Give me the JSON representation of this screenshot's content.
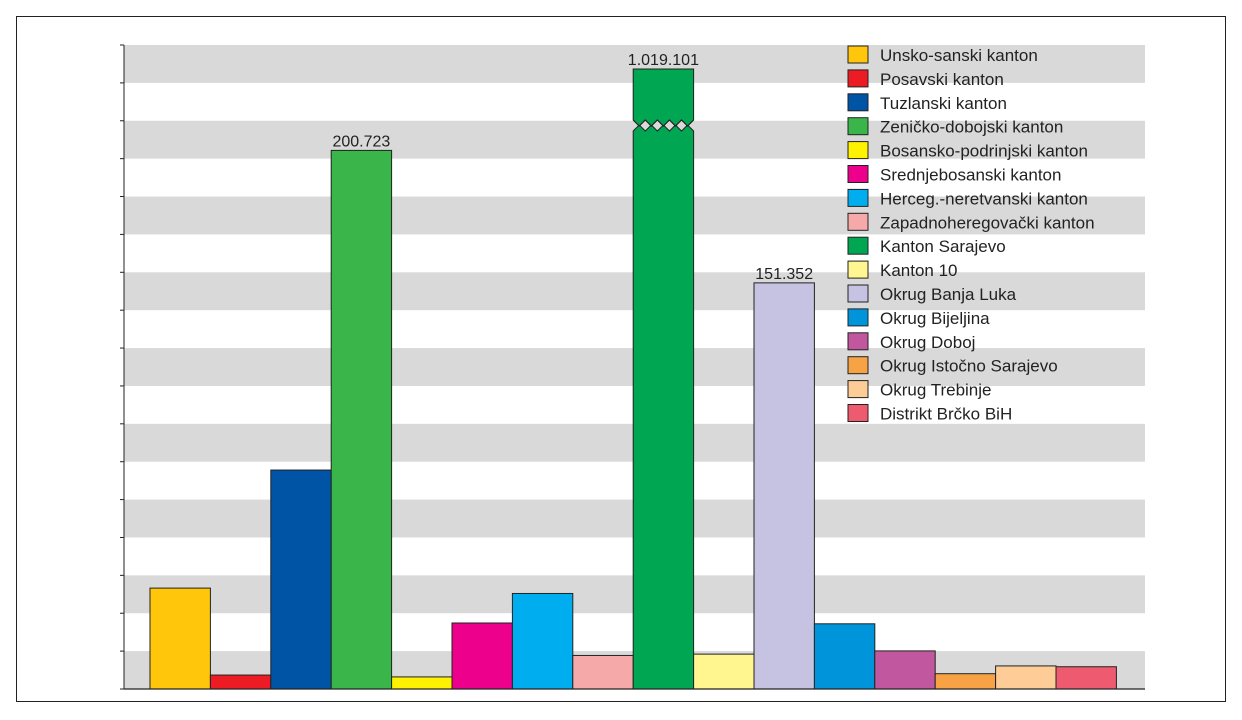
{
  "chart_data": {
    "type": "bar",
    "title": "",
    "xlabel": "",
    "ylabel": "",
    "ylim": [
      0,
      240000
    ],
    "axis_break": true,
    "grid": "alternating horizontal bands",
    "legend_placement": "top-right",
    "categories": [
      "Unsko-sanski kanton",
      "Posavski kanton",
      "Tuzlanski kanton",
      "Zeničko-dobojski kanton",
      "Bosansko-podrinjski kanton",
      "Srednjebosanski kanton",
      "Herceg.-neretvanski kanton",
      "Zapadnoheregovački kanton",
      "Kanton Sarajevo",
      "Kanton 10",
      "Okrug Banja Luka",
      "Okrug Bijeljina",
      "Okrug Doboj",
      "Okrug Istočno Sarajevo",
      "Okrug Trebinje",
      "Distrikt Brčko BiH"
    ],
    "values": [
      37600,
      5200,
      81600,
      200723,
      4500,
      24600,
      35600,
      12500,
      1019101,
      13000,
      151352,
      24300,
      14200,
      5700,
      8600,
      8300
    ],
    "colors": [
      "#ffc60b",
      "#ed1c24",
      "#0054a6",
      "#39b54a",
      "#fff200",
      "#ec008c",
      "#00aeef",
      "#f5a9a9",
      "#00a651",
      "#fff68f",
      "#c5c3e1",
      "#0095da",
      "#c1579e",
      "#f7a245",
      "#fdcc97",
      "#ee5a6f"
    ],
    "data_labels": [
      {
        "index": 3,
        "text": "200.723"
      },
      {
        "index": 8,
        "text": "1.019.101"
      },
      {
        "index": 10,
        "text": "151.352"
      }
    ]
  }
}
